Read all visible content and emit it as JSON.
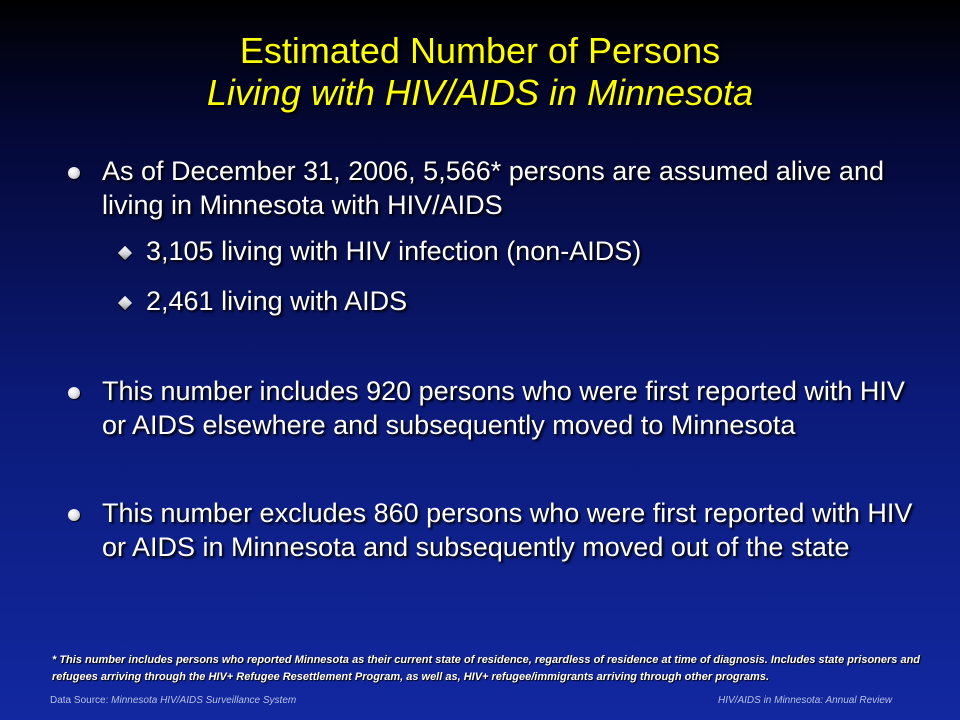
{
  "title": {
    "line1": "Estimated Number of Persons",
    "line2": "Living with HIV/AIDS in Minnesota"
  },
  "bullets": [
    {
      "text": "As of December 31, 2006, 5,566* persons are assumed alive and living in Minnesota with HIV/AIDS",
      "sub": [
        "3,105 living with HIV infection (non-AIDS)",
        "2,461 living with AIDS"
      ]
    },
    {
      "text": "This number includes 920 persons who were first reported with HIV or AIDS elsewhere and subsequently moved to Minnesota"
    },
    {
      "text": "This number excludes 860 persons who were first reported with HIV or AIDS in Minnesota and subsequently moved out of the state"
    }
  ],
  "footnote": "* This number includes persons who reported Minnesota as their current state of residence, regardless of residence at time of diagnosis. Includes state prisoners and refugees arriving through the HIV+ Refugee Resettlement Program, as well as, HIV+ refugee/immigrants arriving through other programs.",
  "footer": {
    "source_label": "Data Source:",
    "source_value": "Minnesota HIV/AIDS Surveillance System",
    "right": "HIV/AIDS in Minnesota: Annual Review"
  },
  "colors": {
    "title": "#ffff00",
    "text": "#ffffff",
    "footer": "#b6c0e6"
  }
}
